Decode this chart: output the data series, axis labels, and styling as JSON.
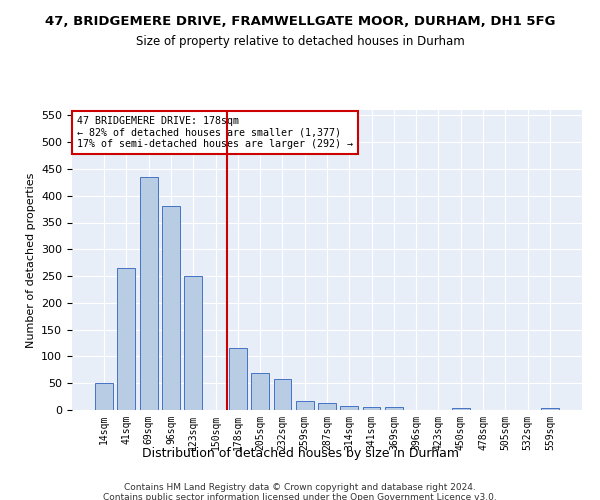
{
  "title": "47, BRIDGEMERE DRIVE, FRAMWELLGATE MOOR, DURHAM, DH1 5FG",
  "subtitle": "Size of property relative to detached houses in Durham",
  "xlabel": "Distribution of detached houses by size in Durham",
  "ylabel": "Number of detached properties",
  "bar_labels": [
    "14sqm",
    "41sqm",
    "69sqm",
    "96sqm",
    "123sqm",
    "150sqm",
    "178sqm",
    "205sqm",
    "232sqm",
    "259sqm",
    "287sqm",
    "314sqm",
    "341sqm",
    "369sqm",
    "396sqm",
    "423sqm",
    "450sqm",
    "478sqm",
    "505sqm",
    "532sqm",
    "559sqm"
  ],
  "bar_heights": [
    50,
    265,
    435,
    380,
    250,
    0,
    115,
    70,
    58,
    17,
    13,
    8,
    5,
    5,
    0,
    0,
    3,
    0,
    0,
    0,
    3
  ],
  "bar_color": "#b8cce4",
  "bar_edge_color": "#4472c4",
  "marker_index": 6,
  "marker_color": "#cc0000",
  "annotation_title": "47 BRIDGEMERE DRIVE: 178sqm",
  "annotation_line1": "← 82% of detached houses are smaller (1,377)",
  "annotation_line2": "17% of semi-detached houses are larger (292) →",
  "ylim": [
    0,
    560
  ],
  "yticks": [
    0,
    50,
    100,
    150,
    200,
    250,
    300,
    350,
    400,
    450,
    500,
    550
  ],
  "footer1": "Contains HM Land Registry data © Crown copyright and database right 2024.",
  "footer2": "Contains public sector information licensed under the Open Government Licence v3.0.",
  "bg_color": "#e8eef8"
}
